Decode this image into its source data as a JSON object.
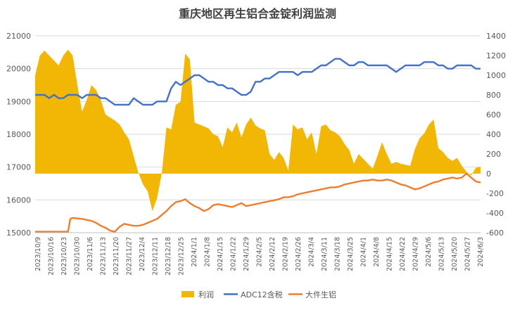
{
  "chart_data": {
    "type": "line",
    "title": "重庆地区再生铝合金锭利润监测",
    "left_axis": {
      "ylim": [
        15000,
        21000
      ],
      "ticks": [
        15000,
        16000,
        17000,
        18000,
        19000,
        20000,
        21000
      ]
    },
    "right_axis": {
      "ylim": [
        -600,
        1400
      ],
      "ticks": [
        -600,
        -400,
        -200,
        0,
        200,
        400,
        600,
        800,
        1000,
        1200,
        1400
      ]
    },
    "categories": [
      "2023/10/9",
      "2023/10/16",
      "2023/10/23",
      "2023/10/30",
      "2023/11/6",
      "2023/11/13",
      "2023/11/20",
      "2023/11/27",
      "2023/12/4",
      "2023/12/11",
      "2023/12/18",
      "2023/12/25",
      "2024/1/1",
      "2024/1/8",
      "2024/1/15",
      "2024/1/22",
      "2024/1/29",
      "2024/2/5",
      "2024/2/12",
      "2024/2/19",
      "2024/2/26",
      "2024/3/4",
      "2024/3/11",
      "2024/3/18",
      "2024/3/25",
      "2024/4/1",
      "2024/4/8",
      "2024/4/15",
      "2024/4/22",
      "2024/4/29",
      "2024/5/6",
      "2024/5/13",
      "2024/5/20",
      "2024/5/27",
      "2024/6/3"
    ],
    "grid": "horizontal",
    "legend_position": "bottom",
    "series": [
      {
        "name": "利润",
        "type": "area",
        "axis": "right",
        "color": "#f2b705",
        "points": [
          [
            0,
            1000
          ],
          [
            1,
            1200
          ],
          [
            2,
            1250
          ],
          [
            3,
            1200
          ],
          [
            4,
            1150
          ],
          [
            5,
            1100
          ],
          [
            6,
            1200
          ],
          [
            7,
            1260
          ],
          [
            8,
            1200
          ],
          [
            9,
            900
          ],
          [
            10,
            630
          ],
          [
            11,
            750
          ],
          [
            12,
            900
          ],
          [
            13,
            850
          ],
          [
            14,
            750
          ],
          [
            15,
            600
          ],
          [
            16,
            570
          ],
          [
            17,
            540
          ],
          [
            18,
            500
          ],
          [
            19,
            420
          ],
          [
            20,
            350
          ],
          [
            21,
            180
          ],
          [
            22,
            10
          ],
          [
            23,
            -110
          ],
          [
            24,
            -180
          ],
          [
            25,
            -380
          ],
          [
            26,
            -250
          ],
          [
            27,
            0
          ],
          [
            28,
            470
          ],
          [
            29,
            450
          ],
          [
            30,
            700
          ],
          [
            31,
            730
          ],
          [
            32,
            1220
          ],
          [
            33,
            1160
          ],
          [
            34,
            520
          ],
          [
            35,
            500
          ],
          [
            36,
            480
          ],
          [
            37,
            460
          ],
          [
            38,
            400
          ],
          [
            39,
            380
          ],
          [
            40,
            270
          ],
          [
            41,
            470
          ],
          [
            42,
            420
          ],
          [
            43,
            520
          ],
          [
            44,
            370
          ],
          [
            45,
            500
          ],
          [
            46,
            570
          ],
          [
            47,
            490
          ],
          [
            48,
            460
          ],
          [
            49,
            440
          ],
          [
            50,
            200
          ],
          [
            51,
            140
          ],
          [
            52,
            220
          ],
          [
            53,
            160
          ],
          [
            54,
            30
          ],
          [
            55,
            500
          ],
          [
            56,
            450
          ],
          [
            57,
            470
          ],
          [
            58,
            350
          ],
          [
            59,
            420
          ],
          [
            60,
            200
          ],
          [
            61,
            480
          ],
          [
            62,
            500
          ],
          [
            63,
            440
          ],
          [
            64,
            420
          ],
          [
            65,
            380
          ],
          [
            66,
            300
          ],
          [
            67,
            240
          ],
          [
            68,
            100
          ],
          [
            69,
            200
          ],
          [
            70,
            150
          ],
          [
            71,
            100
          ],
          [
            72,
            50
          ],
          [
            73,
            180
          ],
          [
            74,
            320
          ],
          [
            75,
            200
          ],
          [
            76,
            100
          ],
          [
            77,
            120
          ],
          [
            78,
            100
          ],
          [
            79,
            90
          ],
          [
            80,
            80
          ],
          [
            81,
            250
          ],
          [
            82,
            360
          ],
          [
            83,
            410
          ],
          [
            84,
            500
          ],
          [
            85,
            550
          ],
          [
            86,
            260
          ],
          [
            87,
            220
          ],
          [
            88,
            160
          ],
          [
            89,
            130
          ],
          [
            90,
            160
          ],
          [
            91,
            80
          ],
          [
            92,
            20
          ],
          [
            93,
            -20
          ],
          [
            94,
            60
          ],
          [
            95,
            70
          ]
        ]
      },
      {
        "name": "ADC12含税",
        "type": "line",
        "axis": "left",
        "color": "#4472c4",
        "points": [
          [
            0,
            19200
          ],
          [
            1,
            19200
          ],
          [
            2,
            19200
          ],
          [
            3,
            19100
          ],
          [
            4,
            19200
          ],
          [
            5,
            19100
          ],
          [
            6,
            19100
          ],
          [
            7,
            19200
          ],
          [
            8,
            19200
          ],
          [
            9,
            19200
          ],
          [
            10,
            19100
          ],
          [
            11,
            19200
          ],
          [
            12,
            19200
          ],
          [
            13,
            19200
          ],
          [
            14,
            19100
          ],
          [
            15,
            19100
          ],
          [
            16,
            19000
          ],
          [
            17,
            18900
          ],
          [
            18,
            18900
          ],
          [
            19,
            18900
          ],
          [
            20,
            18900
          ],
          [
            21,
            19100
          ],
          [
            22,
            19000
          ],
          [
            23,
            18900
          ],
          [
            24,
            18900
          ],
          [
            25,
            18900
          ],
          [
            26,
            19000
          ],
          [
            27,
            19000
          ],
          [
            28,
            19000
          ],
          [
            29,
            19400
          ],
          [
            30,
            19600
          ],
          [
            31,
            19500
          ],
          [
            32,
            19600
          ],
          [
            33,
            19700
          ],
          [
            34,
            19800
          ],
          [
            35,
            19800
          ],
          [
            36,
            19700
          ],
          [
            37,
            19600
          ],
          [
            38,
            19600
          ],
          [
            39,
            19500
          ],
          [
            40,
            19500
          ],
          [
            41,
            19400
          ],
          [
            42,
            19400
          ],
          [
            43,
            19300
          ],
          [
            44,
            19200
          ],
          [
            45,
            19200
          ],
          [
            46,
            19300
          ],
          [
            47,
            19600
          ],
          [
            48,
            19600
          ],
          [
            49,
            19700
          ],
          [
            50,
            19700
          ],
          [
            51,
            19800
          ],
          [
            52,
            19900
          ],
          [
            53,
            19900
          ],
          [
            54,
            19900
          ],
          [
            55,
            19900
          ],
          [
            56,
            19800
          ],
          [
            57,
            19900
          ],
          [
            58,
            19900
          ],
          [
            59,
            19900
          ],
          [
            60,
            20000
          ],
          [
            61,
            20100
          ],
          [
            62,
            20100
          ],
          [
            63,
            20200
          ],
          [
            64,
            20300
          ],
          [
            65,
            20300
          ],
          [
            66,
            20200
          ],
          [
            67,
            20100
          ],
          [
            68,
            20100
          ],
          [
            69,
            20200
          ],
          [
            70,
            20200
          ],
          [
            71,
            20100
          ],
          [
            72,
            20100
          ],
          [
            73,
            20100
          ],
          [
            74,
            20100
          ],
          [
            75,
            20100
          ],
          [
            76,
            20000
          ],
          [
            77,
            19900
          ],
          [
            78,
            20000
          ],
          [
            79,
            20100
          ],
          [
            80,
            20100
          ],
          [
            81,
            20100
          ],
          [
            82,
            20100
          ],
          [
            83,
            20200
          ],
          [
            84,
            20200
          ],
          [
            85,
            20200
          ],
          [
            86,
            20100
          ],
          [
            87,
            20100
          ],
          [
            88,
            20000
          ],
          [
            89,
            20000
          ],
          [
            90,
            20100
          ],
          [
            91,
            20100
          ],
          [
            92,
            20100
          ],
          [
            93,
            20100
          ],
          [
            94,
            20000
          ],
          [
            95,
            20000
          ]
        ]
      },
      {
        "name": "大件生铝",
        "type": "line",
        "axis": "right",
        "color": "#ed7d31",
        "points": [
          [
            0,
            -590
          ],
          [
            7,
            -590
          ],
          [
            7.5,
            -460
          ],
          [
            8,
            -450
          ],
          [
            10,
            -460
          ],
          [
            12,
            -480
          ],
          [
            13,
            -500
          ],
          [
            14,
            -530
          ],
          [
            15,
            -550
          ],
          [
            16,
            -580
          ],
          [
            17,
            -590
          ],
          [
            18,
            -540
          ],
          [
            19,
            -510
          ],
          [
            20,
            -520
          ],
          [
            21,
            -530
          ],
          [
            22,
            -530
          ],
          [
            23,
            -520
          ],
          [
            24,
            -500
          ],
          [
            25,
            -480
          ],
          [
            26,
            -460
          ],
          [
            27,
            -420
          ],
          [
            28,
            -380
          ],
          [
            29,
            -330
          ],
          [
            30,
            -290
          ],
          [
            31,
            -280
          ],
          [
            32,
            -260
          ],
          [
            33,
            -300
          ],
          [
            34,
            -330
          ],
          [
            35,
            -350
          ],
          [
            36,
            -380
          ],
          [
            37,
            -360
          ],
          [
            38,
            -320
          ],
          [
            39,
            -310
          ],
          [
            40,
            -320
          ],
          [
            41,
            -330
          ],
          [
            42,
            -340
          ],
          [
            43,
            -320
          ],
          [
            44,
            -300
          ],
          [
            45,
            -330
          ],
          [
            46,
            -320
          ],
          [
            47,
            -310
          ],
          [
            48,
            -300
          ],
          [
            49,
            -290
          ],
          [
            50,
            -280
          ],
          [
            51,
            -270
          ],
          [
            52,
            -260
          ],
          [
            53,
            -240
          ],
          [
            54,
            -240
          ],
          [
            55,
            -230
          ],
          [
            56,
            -210
          ],
          [
            57,
            -200
          ],
          [
            58,
            -190
          ],
          [
            59,
            -180
          ],
          [
            60,
            -170
          ],
          [
            61,
            -160
          ],
          [
            62,
            -150
          ],
          [
            63,
            -140
          ],
          [
            64,
            -140
          ],
          [
            65,
            -130
          ],
          [
            66,
            -110
          ],
          [
            67,
            -100
          ],
          [
            68,
            -90
          ],
          [
            69,
            -80
          ],
          [
            70,
            -70
          ],
          [
            71,
            -70
          ],
          [
            72,
            -60
          ],
          [
            73,
            -70
          ],
          [
            74,
            -70
          ],
          [
            75,
            -60
          ],
          [
            76,
            -70
          ],
          [
            77,
            -90
          ],
          [
            78,
            -110
          ],
          [
            79,
            -120
          ],
          [
            80,
            -140
          ],
          [
            81,
            -160
          ],
          [
            82,
            -150
          ],
          [
            83,
            -130
          ],
          [
            84,
            -110
          ],
          [
            85,
            -90
          ],
          [
            86,
            -80
          ],
          [
            87,
            -60
          ],
          [
            88,
            -50
          ],
          [
            89,
            -40
          ],
          [
            90,
            -50
          ],
          [
            91,
            -40
          ],
          [
            92,
            0
          ],
          [
            93,
            -40
          ],
          [
            94,
            -80
          ],
          [
            95,
            -90
          ]
        ]
      }
    ]
  }
}
